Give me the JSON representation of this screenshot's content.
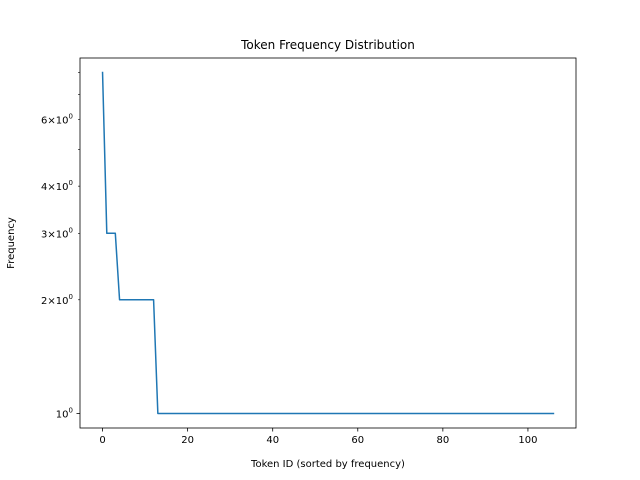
{
  "chart_data": {
    "type": "line",
    "title": "Token Frequency Distribution",
    "xlabel": "Token ID (sorted by frequency)",
    "ylabel": "Frequency",
    "xlim": [
      -5.3,
      111.3
    ],
    "ylim": [
      0.915,
      8.74
    ],
    "yscale": "log",
    "grid": false,
    "legend": "none",
    "x_ticks": [
      {
        "value": 0,
        "label": "0"
      },
      {
        "value": 20,
        "label": "20"
      },
      {
        "value": 40,
        "label": "40"
      },
      {
        "value": 60,
        "label": "60"
      },
      {
        "value": 80,
        "label": "80"
      },
      {
        "value": 100,
        "label": "100"
      }
    ],
    "y_major_ticks": [
      {
        "value": 1,
        "base": "10",
        "exp": "0"
      }
    ],
    "y_minor_ticks": [
      {
        "value": 2,
        "mult": "2",
        "base": "10",
        "exp": "0"
      },
      {
        "value": 3,
        "mult": "3",
        "base": "10",
        "exp": "0"
      },
      {
        "value": 4,
        "mult": "4",
        "base": "10",
        "exp": "0"
      },
      {
        "value": 6,
        "mult": "6",
        "base": "10",
        "exp": "0"
      }
    ],
    "y_unlabeled_minor_ticks": [
      5,
      7,
      8
    ],
    "series": [
      {
        "color": "#1f77b4",
        "x": [
          0,
          1,
          2,
          3,
          4,
          5,
          6,
          7,
          8,
          9,
          10,
          11,
          12,
          13,
          106
        ],
        "y": [
          8,
          3,
          3,
          3,
          2,
          2,
          2,
          2,
          2,
          2,
          2,
          2,
          2,
          1,
          1
        ]
      }
    ]
  }
}
